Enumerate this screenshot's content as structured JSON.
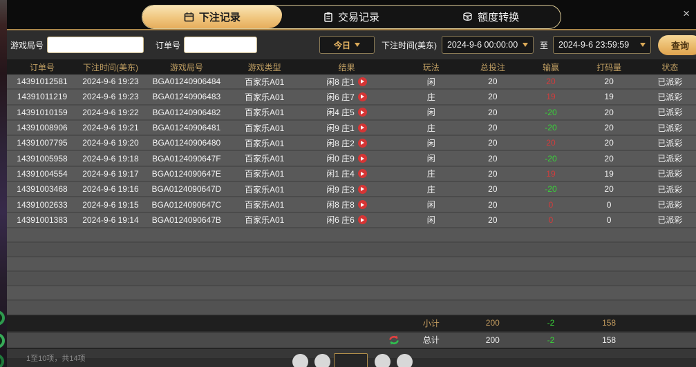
{
  "colors": {
    "accent_gold": "#edbd72",
    "header_gold": "#bf9e62",
    "win_red": "#d23c3c",
    "loss_green": "#39d239",
    "play_icon_red": "#d53535"
  },
  "tabs": [
    {
      "label": "下注记录",
      "icon": "calendar-icon",
      "active": true
    },
    {
      "label": "交易记录",
      "icon": "clipboard-icon",
      "active": false
    },
    {
      "label": "额度转换",
      "icon": "coin-transfer-icon",
      "active": false
    }
  ],
  "close_label": "×",
  "filters": {
    "round_label": "游戏局号",
    "round_value": "",
    "order_label": "订单号",
    "order_value": "",
    "range_selected": "今日",
    "bet_time_label": "下注时间(美东)",
    "from_value": "2024-9-6 00:00:00",
    "to_label": "至",
    "to_value": "2024-9-6 23:59:59",
    "search_label": "查询"
  },
  "table": {
    "columns": [
      {
        "key": "order",
        "label": "订单号"
      },
      {
        "key": "time",
        "label": "下注时间(美东)"
      },
      {
        "key": "round",
        "label": "游戏局号"
      },
      {
        "key": "type",
        "label": "游戏类型"
      },
      {
        "key": "result",
        "label": "结果"
      },
      {
        "key": "play",
        "label": "玩法"
      },
      {
        "key": "bet",
        "label": "总投注"
      },
      {
        "key": "winloss",
        "label": "输赢"
      },
      {
        "key": "turnover",
        "label": "打码量"
      },
      {
        "key": "status",
        "label": "状态"
      }
    ],
    "rows": [
      {
        "order": "14391012581",
        "time": "2024-9-6 19:23",
        "round": "BGA01240906484",
        "type": "百家乐A01",
        "result": "闲8 庄1",
        "play": "闲",
        "bet": "20",
        "winloss": "20",
        "turnover": "20",
        "status": "已派彩"
      },
      {
        "order": "14391011219",
        "time": "2024-9-6 19:23",
        "round": "BGA01240906483",
        "type": "百家乐A01",
        "result": "闲6 庄7",
        "play": "庄",
        "bet": "20",
        "winloss": "19",
        "turnover": "19",
        "status": "已派彩"
      },
      {
        "order": "14391010159",
        "time": "2024-9-6 19:22",
        "round": "BGA01240906482",
        "type": "百家乐A01",
        "result": "闲4 庄5",
        "play": "闲",
        "bet": "20",
        "winloss": "-20",
        "turnover": "20",
        "status": "已派彩"
      },
      {
        "order": "14391008906",
        "time": "2024-9-6 19:21",
        "round": "BGA01240906481",
        "type": "百家乐A01",
        "result": "闲9 庄1",
        "play": "庄",
        "bet": "20",
        "winloss": "-20",
        "turnover": "20",
        "status": "已派彩"
      },
      {
        "order": "14391007795",
        "time": "2024-9-6 19:20",
        "round": "BGA01240906480",
        "type": "百家乐A01",
        "result": "闲8 庄2",
        "play": "闲",
        "bet": "20",
        "winloss": "20",
        "turnover": "20",
        "status": "已派彩"
      },
      {
        "order": "14391005958",
        "time": "2024-9-6 19:18",
        "round": "BGA0124090647F",
        "type": "百家乐A01",
        "result": "闲0 庄9",
        "play": "闲",
        "bet": "20",
        "winloss": "-20",
        "turnover": "20",
        "status": "已派彩"
      },
      {
        "order": "14391004554",
        "time": "2024-9-6 19:17",
        "round": "BGA0124090647E",
        "type": "百家乐A01",
        "result": "闲1 庄4",
        "play": "庄",
        "bet": "20",
        "winloss": "19",
        "turnover": "19",
        "status": "已派彩"
      },
      {
        "order": "14391003468",
        "time": "2024-9-6 19:16",
        "round": "BGA0124090647D",
        "type": "百家乐A01",
        "result": "闲9 庄3",
        "play": "庄",
        "bet": "20",
        "winloss": "-20",
        "turnover": "20",
        "status": "已派彩"
      },
      {
        "order": "14391002633",
        "time": "2024-9-6 19:15",
        "round": "BGA0124090647C",
        "type": "百家乐A01",
        "result": "闲8 庄8",
        "play": "闲",
        "bet": "20",
        "winloss": "0",
        "turnover": "0",
        "status": "已派彩"
      },
      {
        "order": "14391001383",
        "time": "2024-9-6 19:14",
        "round": "BGA0124090647B",
        "type": "百家乐A01",
        "result": "闲6 庄6",
        "play": "闲",
        "bet": "20",
        "winloss": "0",
        "turnover": "0",
        "status": "已派彩"
      }
    ]
  },
  "footer": {
    "subtotal": {
      "label": "小计",
      "bet": "200",
      "winloss": "-2",
      "turnover": "158"
    },
    "total": {
      "label": "总计",
      "bet": "200",
      "winloss": "-2",
      "turnover": "158"
    }
  },
  "pagination": {
    "info": "1至10项，共14项"
  }
}
